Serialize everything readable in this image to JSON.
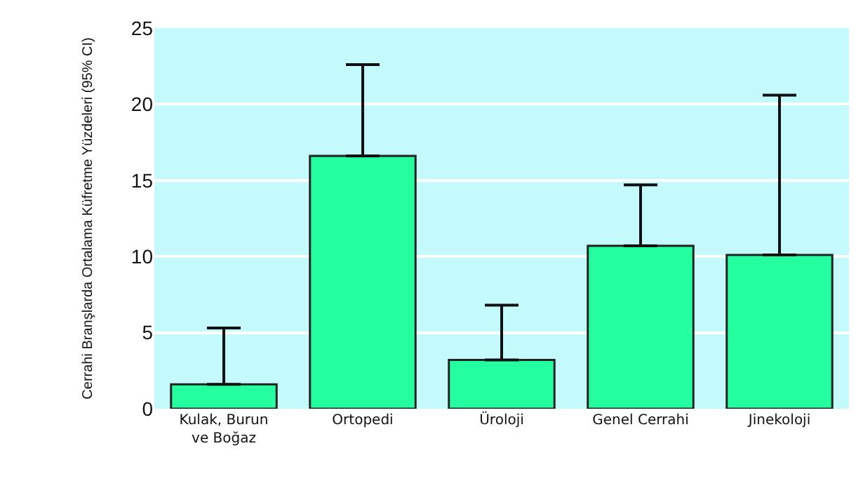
{
  "chart_data": {
    "type": "bar",
    "ylabel": "Cerrahi Branşlarda Ortalama Küfretme Yüzdeleri (95% CI)",
    "categories": [
      "Kulak, Burun\nve Boğaz",
      "Ortopedi",
      "Üroloji",
      "Genel Cerrahi",
      "Jinekoloji"
    ],
    "values": [
      1.6,
      16.6,
      3.2,
      10.7,
      10.1
    ],
    "errors": [
      [
        1.6,
        5.3
      ],
      [
        16.6,
        22.6
      ],
      [
        3.2,
        6.8
      ],
      [
        10.7,
        14.7
      ],
      [
        10.1,
        20.6
      ]
    ],
    "color": "#24ffa0",
    "ylim": [
      0,
      25
    ],
    "yticks": [
      0,
      5,
      10,
      15,
      20,
      25
    ],
    "grid": "y"
  }
}
